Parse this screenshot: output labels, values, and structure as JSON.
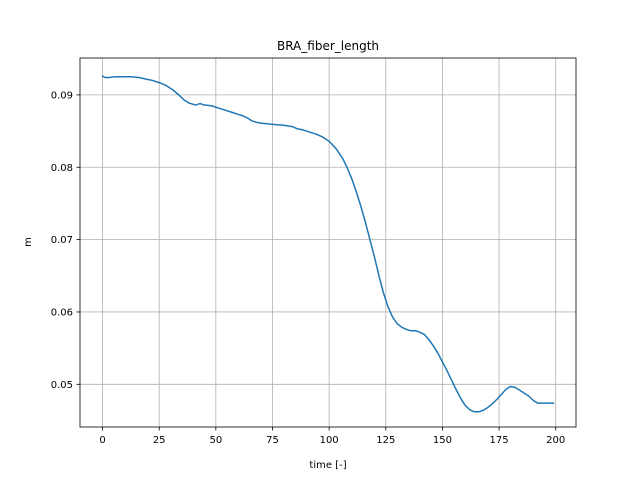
{
  "chart_data": {
    "type": "line",
    "title": "BRA_fiber_length",
    "xlabel": "time [-]",
    "ylabel": "m",
    "xlim": [
      -9.95,
      208.95
    ],
    "ylim": [
      0.0441,
      0.0951
    ],
    "grid": true,
    "xticks": [
      0,
      25,
      50,
      75,
      100,
      125,
      150,
      175,
      200
    ],
    "xtick_labels": [
      "0",
      "25",
      "50",
      "75",
      "100",
      "125",
      "150",
      "175",
      "200"
    ],
    "yticks": [
      0.05,
      0.06,
      0.07,
      0.08,
      0.09
    ],
    "ytick_labels": [
      "0.05",
      "0.06",
      "0.07",
      "0.08",
      "0.09"
    ],
    "line_color": "#1f77b4",
    "grid_color": "#b0b0b0",
    "series": [
      {
        "x": [
          0,
          1,
          3,
          5,
          8,
          10,
          13,
          16,
          19,
          22,
          25,
          28,
          31,
          34,
          36,
          38,
          40,
          41,
          42,
          43,
          45,
          48,
          51,
          54,
          57,
          60,
          62,
          64,
          66,
          68,
          70,
          73,
          76,
          80,
          84,
          86,
          88,
          91,
          94,
          97,
          100,
          103,
          106,
          108,
          110,
          112,
          114,
          116,
          118,
          120,
          122,
          124,
          126,
          128,
          130,
          132,
          134,
          136,
          138,
          140,
          142,
          144,
          146,
          148,
          150,
          152,
          154,
          156,
          158,
          160,
          162,
          164,
          166,
          168,
          170,
          172,
          174,
          176,
          178,
          180,
          182,
          184,
          186,
          188,
          190,
          192,
          194,
          196,
          199
        ],
        "y": [
          0.0926,
          0.0924,
          0.0924,
          0.0925,
          0.0925,
          0.0925,
          0.0925,
          0.0924,
          0.0922,
          0.092,
          0.0917,
          0.0913,
          0.0907,
          0.0899,
          0.0893,
          0.0889,
          0.0887,
          0.0886,
          0.0887,
          0.0888,
          0.0886,
          0.0885,
          0.0882,
          0.0879,
          0.0876,
          0.0873,
          0.0871,
          0.0868,
          0.0864,
          0.0862,
          0.0861,
          0.086,
          0.0859,
          0.0858,
          0.0856,
          0.0853,
          0.0852,
          0.0849,
          0.0846,
          0.0842,
          0.0836,
          0.0826,
          0.0812,
          0.0799,
          0.0784,
          0.0766,
          0.0746,
          0.0724,
          0.07,
          0.0676,
          0.065,
          0.0626,
          0.0607,
          0.0593,
          0.0584,
          0.0579,
          0.0576,
          0.0574,
          0.0574,
          0.0572,
          0.0569,
          0.0562,
          0.0553,
          0.0543,
          0.0531,
          0.0519,
          0.0506,
          0.0493,
          0.0481,
          0.0471,
          0.0465,
          0.0462,
          0.0462,
          0.0464,
          0.0468,
          0.0473,
          0.0479,
          0.0486,
          0.0493,
          0.0497,
          0.0496,
          0.0492,
          0.0488,
          0.0484,
          0.0478,
          0.0474,
          0.0474,
          0.0474,
          0.0474
        ]
      }
    ]
  }
}
